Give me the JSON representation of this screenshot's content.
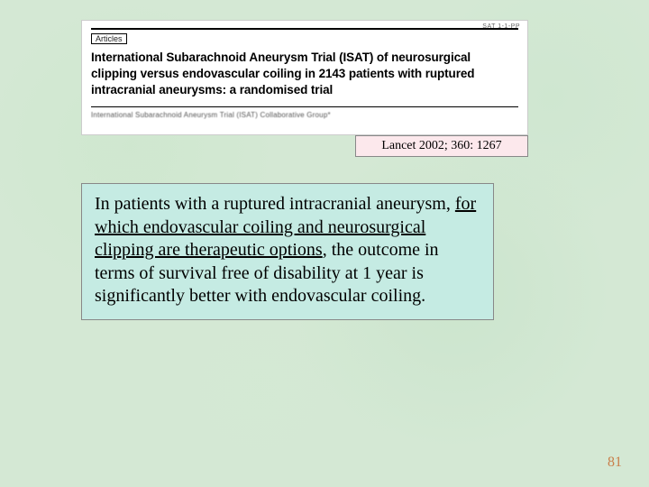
{
  "background_color": "#d4e8d4",
  "article": {
    "sat_label": "SAT 1-1-PP",
    "badge": "Articles",
    "title": "International Subarachnoid Aneurysm Trial (ISAT) of neurosurgical clipping versus endovascular coiling in 2143 patients with ruptured intracranial aneurysms: a randomised trial",
    "collab": "International Subarachnoid Aneurysm Trial (ISAT) Collaborative Group*",
    "box_bg": "#ffffff"
  },
  "citation": {
    "text": "Lancet 2002; 360: 1267",
    "box_bg": "#fce8ec",
    "font_size": 14
  },
  "summary": {
    "pre": "In patients with a ruptured intracranial aneurysm, ",
    "underlined": "for which endovascular coiling and neurosurgical clipping are therapeutic options",
    "post": ", the outcome in terms of survival free of disability at 1 year is significantly better with endovascular coiling.",
    "box_bg": "#c5ebe3",
    "font_size": 20
  },
  "page_number": "81",
  "page_number_color": "#c97f4a"
}
